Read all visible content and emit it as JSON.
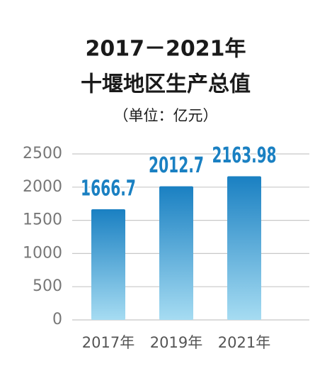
{
  "chart_data": {
    "type": "bar",
    "title": "2017－2021年",
    "subtitle": "十堰地区生产总值",
    "unit": "（单位：亿元）",
    "categories": [
      "2017年",
      "2019年",
      "2021年"
    ],
    "values": [
      1666.7,
      2012.7,
      2163.98
    ],
    "color": "#1a80c2",
    "ylim": [
      0,
      2500
    ],
    "yticks": [
      0,
      500,
      1000,
      1500,
      2000,
      2500
    ],
    "grid": true
  }
}
